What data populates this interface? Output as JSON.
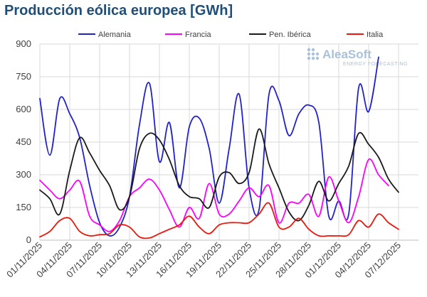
{
  "chart_data": {
    "type": "line",
    "title": "Producción eólica europea [GWh]",
    "xlabel": "",
    "ylabel": "",
    "ylim": [
      0,
      900
    ],
    "yticks": [
      0,
      150,
      300,
      450,
      600,
      750,
      900
    ],
    "grid": true,
    "legend_position": "top",
    "x": [
      "01/11/2025",
      "02/11/2025",
      "03/11/2025",
      "04/11/2025",
      "05/11/2025",
      "06/11/2025",
      "07/11/2025",
      "08/11/2025",
      "09/11/2025",
      "10/11/2025",
      "11/11/2025",
      "12/11/2025",
      "13/11/2025",
      "14/11/2025",
      "15/11/2025",
      "16/11/2025",
      "17/11/2025",
      "18/11/2025",
      "19/11/2025",
      "20/11/2025",
      "21/11/2025",
      "22/11/2025",
      "23/11/2025",
      "24/11/2025",
      "25/11/2025",
      "26/11/2025",
      "27/11/2025",
      "28/11/2025",
      "29/11/2025",
      "30/11/2025",
      "01/12/2025",
      "02/12/2025",
      "03/12/2025",
      "04/12/2025",
      "05/12/2025",
      "06/12/2025",
      "07/12/2025",
      "08/12/2025",
      "09/12/2025"
    ],
    "x_tick_labels": [
      "01/11/2025",
      "04/11/2025",
      "07/11/2025",
      "10/11/2025",
      "13/11/2025",
      "16/11/2025",
      "19/11/2025",
      "22/11/2025",
      "25/11/2025",
      "28/11/2025",
      "01/12/2025",
      "04/12/2025",
      "07/12/2025"
    ],
    "series": [
      {
        "name": "Alemania",
        "color": "#2222cc",
        "values": [
          650,
          390,
          650,
          580,
          470,
          250,
          80,
          20,
          60,
          200,
          530,
          720,
          360,
          540,
          240,
          520,
          560,
          420,
          170,
          420,
          670,
          240,
          140,
          670,
          640,
          480,
          580,
          620,
          540,
          110,
          180,
          120,
          700,
          590,
          840,
          null,
          null,
          null,
          null
        ]
      },
      {
        "name": "Francia",
        "color": "#ff00ff",
        "values": [
          275,
          230,
          190,
          230,
          270,
          110,
          70,
          40,
          90,
          200,
          240,
          280,
          230,
          140,
          60,
          150,
          100,
          260,
          120,
          120,
          180,
          240,
          200,
          250,
          80,
          170,
          170,
          210,
          110,
          290,
          180,
          80,
          200,
          370,
          300,
          250,
          null,
          null,
          null
        ]
      },
      {
        "name": "Pen. Ibérica",
        "color": "#1a1a1a",
        "values": [
          230,
          190,
          120,
          320,
          470,
          400,
          320,
          250,
          140,
          200,
          420,
          490,
          460,
          370,
          250,
          200,
          190,
          150,
          290,
          310,
          260,
          310,
          510,
          350,
          240,
          130,
          90,
          160,
          270,
          180,
          260,
          340,
          490,
          440,
          380,
          280,
          220,
          null,
          null
        ]
      },
      {
        "name": "Italia",
        "color": "#e8180c",
        "values": [
          15,
          40,
          90,
          100,
          40,
          20,
          25,
          30,
          70,
          60,
          15,
          10,
          30,
          50,
          70,
          110,
          60,
          30,
          70,
          80,
          80,
          80,
          120,
          170,
          60,
          60,
          100,
          50,
          20,
          20,
          20,
          25,
          90,
          60,
          120,
          80,
          50,
          null,
          null
        ]
      }
    ]
  },
  "logo": {
    "name": "AleaSoft",
    "tagline": "ENERGY FORECASTING",
    "icon": "aleasoft-dots-logo-icon"
  }
}
